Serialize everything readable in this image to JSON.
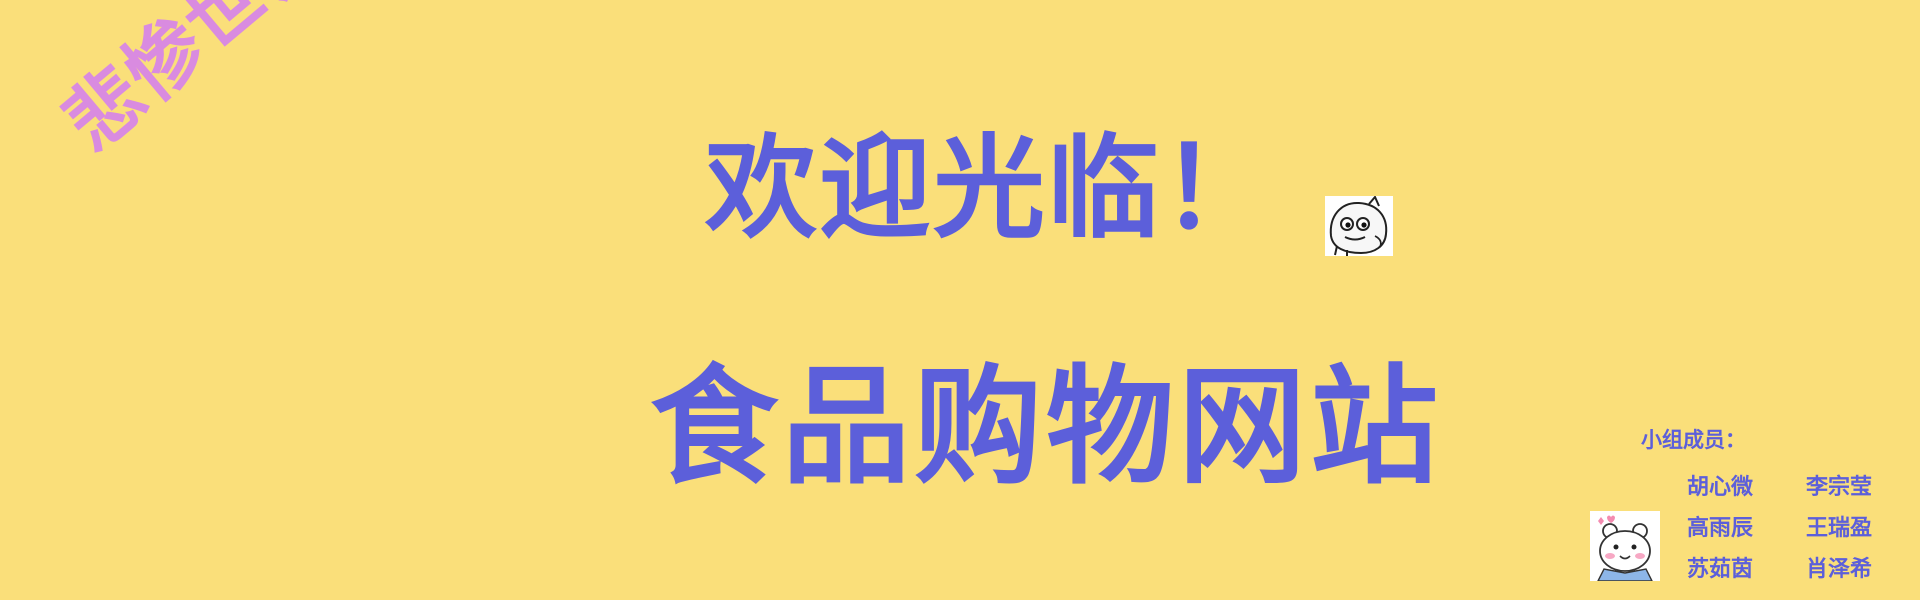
{
  "stamp_text": "悲惨世界",
  "welcome_text": "欢迎光临！",
  "site_title": "食品购物网站",
  "members_label": "小组成员：",
  "members": [
    "胡心微",
    "李宗莹",
    "高雨辰",
    "王瑞盈",
    "苏茹茵",
    "肖泽希"
  ],
  "icons": {
    "sticker_top": "meme-face-sticker-icon",
    "sticker_bottom": "cartoon-bear-sticker-icon"
  },
  "colors": {
    "background": "#FADF7A",
    "title": "#5C5FDA",
    "stamp": "#D98BE0"
  }
}
